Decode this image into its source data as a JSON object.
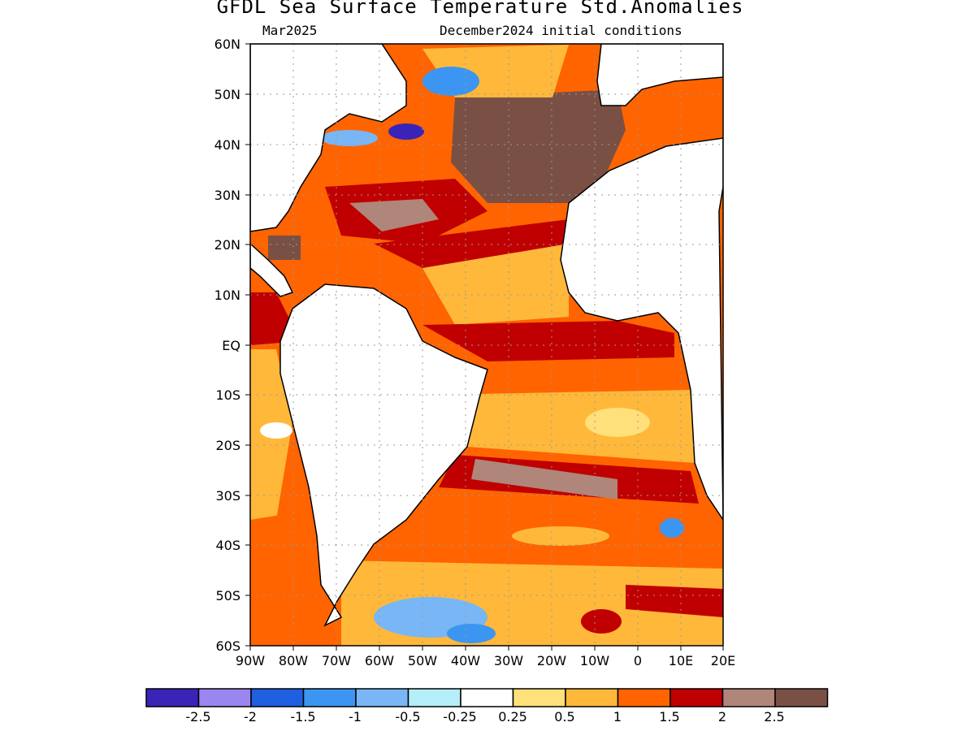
{
  "title": "GFDL Sea Surface Temperature Std.Anomalies",
  "subtitle_left": "Mar2025",
  "subtitle_right": "December2024 initial conditions",
  "lat_labels": [
    "60N",
    "50N",
    "40N",
    "30N",
    "20N",
    "10N",
    "EQ",
    "10S",
    "20S",
    "30S",
    "40S",
    "50S",
    "60S"
  ],
  "lon_labels": [
    "90W",
    "80W",
    "70W",
    "60W",
    "50W",
    "40W",
    "30W",
    "20W",
    "10W",
    "0",
    "10E",
    "20E"
  ],
  "colorbar": {
    "labels": [
      "-2.5",
      "-2",
      "-1.5",
      "-1",
      "-0.5",
      "-0.25",
      "0.25",
      "0.5",
      "1",
      "1.5",
      "2",
      "2.5"
    ],
    "colors": [
      "#3a24b8",
      "#9b86f0",
      "#1f5fe0",
      "#3c95f0",
      "#78b6f5",
      "#b4eef8",
      "#ffffff",
      "#ffe07a",
      "#ffb83a",
      "#ff6400",
      "#c00000",
      "#b0857a",
      "#7a5045"
    ]
  },
  "map_extent": {
    "lon": [
      -90,
      20
    ],
    "lat": [
      -60,
      60
    ]
  }
}
